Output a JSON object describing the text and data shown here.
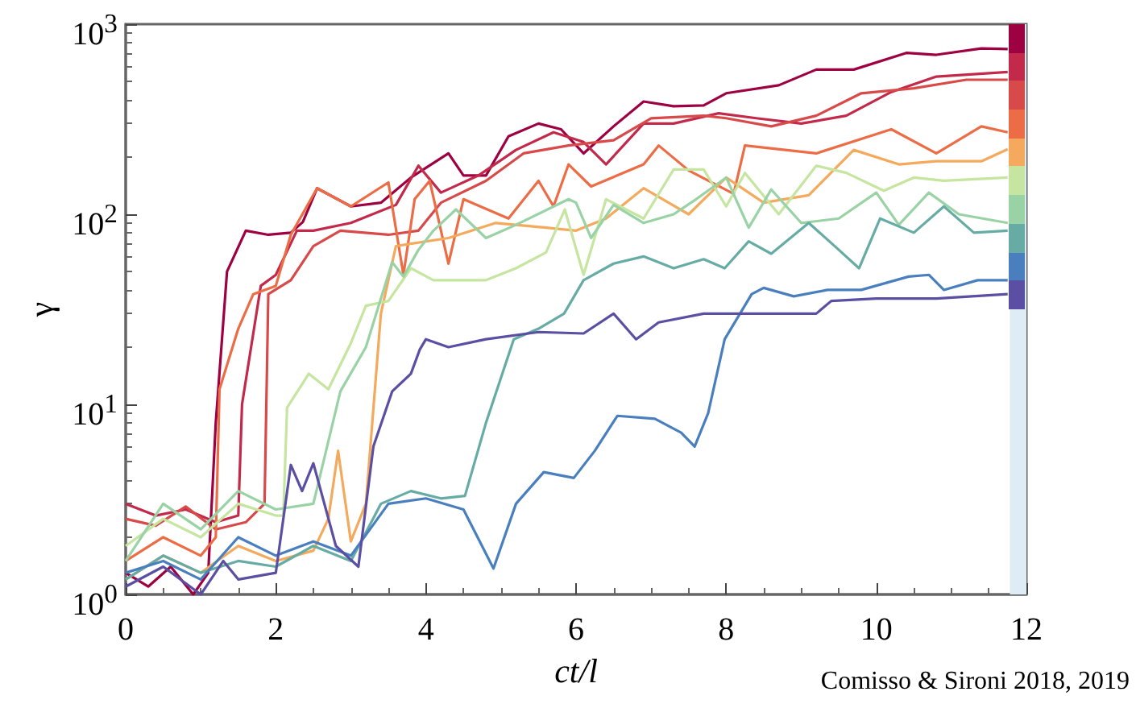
{
  "chart_data": {
    "type": "line",
    "xlabel": "ct/l",
    "ylabel": "γ",
    "log": "y",
    "grid": false,
    "marker": "none",
    "line_style": "solid",
    "xlim": [
      0,
      12
    ],
    "xticks": [
      0,
      2,
      4,
      6,
      8,
      10,
      12
    ],
    "ylim": [
      1,
      1000
    ],
    "yticks": [
      {
        "value": 1,
        "label": "10$^{0}$"
      },
      {
        "value": 10,
        "label": "10$^{1}$"
      },
      {
        "value": 100,
        "label": "10$^{2}$"
      },
      {
        "value": 1000,
        "label": "10$^{3}$"
      }
    ],
    "bands": [
      {
        "axis": "x",
        "from": 11.78,
        "to": 12,
        "color": "#deedf5"
      }
    ],
    "annotations": [
      "Comisso & Sironi 2018, 2019"
    ],
    "series": [
      {
        "color": "#9e0142",
        "x": [
          0,
          0.3,
          0.6,
          0.9,
          1.1,
          1.2,
          1.35,
          1.6,
          1.9,
          2.2,
          2.36,
          2.55,
          3.0,
          3.4,
          3.8,
          4.3,
          4.5,
          4.8,
          5.1,
          5.5,
          5.8,
          6.1,
          6.5,
          6.9,
          7.3,
          7.7,
          8.0,
          8.7,
          9.2,
          9.7,
          10.4,
          10.8,
          11.4,
          11.75
        ],
        "values": [
          1.3,
          1.1,
          1.4,
          1.0,
          1.3,
          8,
          50,
          82,
          78,
          80,
          91,
          137,
          110,
          115,
          156,
          209,
          160,
          160,
          257,
          300,
          280,
          209,
          290,
          392,
          370,
          374,
          433,
          477,
          577,
          577,
          706,
          690,
          745,
          740
        ]
      },
      {
        "color": "#c2294a",
        "x": [
          0,
          0.4,
          0.8,
          1.2,
          1.5,
          1.55,
          1.8,
          2.0,
          2.28,
          2.5,
          3.0,
          3.6,
          3.9,
          4.2,
          4.7,
          5.2,
          5.7,
          6.1,
          6.4,
          6.9,
          7.3,
          7.9,
          8.4,
          9.0,
          9.6,
          10.2,
          10.8,
          11.75
        ],
        "values": [
          3.0,
          2.6,
          2.8,
          2.4,
          2.6,
          10,
          42,
          48,
          82,
          82,
          90,
          112,
          180,
          130,
          160,
          218,
          270,
          240,
          183,
          300,
          300,
          340,
          320,
          300,
          330,
          440,
          530,
          560
        ]
      },
      {
        "color": "#d8494a",
        "x": [
          0,
          0.4,
          0.8,
          1.2,
          1.6,
          1.85,
          1.9,
          2.2,
          2.5,
          2.86,
          3.5,
          3.9,
          4.2,
          4.8,
          5.3,
          5.9,
          6.5,
          7.0,
          7.7,
          8.0,
          8.6,
          9.2,
          9.8,
          10.5,
          11.2,
          11.75
        ],
        "values": [
          2.5,
          2.3,
          2.9,
          2.2,
          2.4,
          3,
          38,
          45,
          68,
          82,
          78,
          82,
          115,
          150,
          209,
          230,
          245,
          320,
          330,
          320,
          290,
          330,
          433,
          460,
          510,
          510
        ]
      },
      {
        "color": "#ec6c45",
        "x": [
          0,
          0.5,
          1.0,
          1.2,
          1.25,
          1.5,
          1.7,
          2.0,
          2.2,
          2.55,
          3.0,
          3.5,
          3.7,
          3.85,
          4.05,
          4.3,
          4.5,
          5.1,
          5.5,
          5.7,
          5.9,
          6.2,
          6.9,
          7.1,
          7.5,
          8.1,
          8.25,
          9.2,
          10.2,
          10.8,
          11.4,
          11.75
        ],
        "values": [
          1.5,
          2.0,
          1.6,
          2.0,
          12,
          25,
          38,
          42,
          78,
          137,
          110,
          147,
          48,
          120,
          150,
          55,
          120,
          95,
          150,
          110,
          183,
          140,
          183,
          230,
          170,
          128,
          230,
          209,
          280,
          209,
          290,
          270
        ]
      },
      {
        "color": "#f5a95c",
        "x": [
          0,
          0.5,
          1.0,
          1.5,
          2.0,
          2.5,
          2.7,
          2.83,
          3.0,
          3.2,
          3.4,
          3.6,
          4.3,
          4.93,
          5.6,
          6.0,
          6.4,
          6.9,
          7.5,
          8.0,
          8.5,
          9.1,
          9.7,
          10.3,
          10.8,
          11.4,
          11.75
        ],
        "values": [
          1.2,
          1.6,
          1.3,
          1.8,
          1.5,
          1.7,
          2.5,
          5.7,
          1.9,
          3,
          30,
          68,
          75,
          90,
          85,
          82,
          95,
          137,
          100,
          156,
          115,
          126,
          218,
          183,
          190,
          190,
          220
        ]
      },
      {
        "color": "#c5e5a0",
        "x": [
          0,
          0.5,
          1.0,
          1.5,
          2.0,
          2.1,
          2.15,
          2.44,
          2.7,
          3.0,
          3.2,
          3.5,
          3.8,
          4.1,
          4.8,
          5.2,
          5.6,
          5.85,
          6.1,
          6.4,
          6.9,
          7.3,
          7.7,
          8.0,
          8.25,
          8.7,
          9.2,
          9.6,
          10.1,
          10.5,
          10.9,
          11.75
        ],
        "values": [
          1.8,
          2.5,
          2.0,
          3.0,
          2.6,
          2.6,
          9.6,
          14.5,
          12,
          21,
          33,
          35,
          52,
          45,
          45,
          52,
          63,
          106,
          48,
          120,
          95,
          172,
          172,
          110,
          165,
          100,
          180,
          165,
          133,
          156,
          150,
          156
        ]
      },
      {
        "color": "#99d2a4",
        "x": [
          0,
          0.5,
          1.0,
          1.5,
          2.0,
          2.5,
          2.86,
          3.2,
          3.55,
          3.7,
          3.9,
          4.1,
          4.4,
          4.8,
          5.2,
          5.9,
          6.0,
          6.2,
          6.5,
          6.9,
          7.3,
          7.6,
          8.0,
          8.3,
          8.6,
          9.0,
          9.5,
          10.0,
          10.3,
          10.7,
          11.1,
          11.75
        ],
        "values": [
          1.5,
          3.0,
          2.2,
          3.5,
          2.8,
          3.0,
          11.7,
          20,
          56,
          47,
          65,
          82,
          106,
          75,
          88,
          120,
          115,
          75,
          112,
          90,
          100,
          120,
          156,
          85,
          135,
          90,
          95,
          130,
          88,
          130,
          100,
          90
        ]
      },
      {
        "color": "#66aca4",
        "x": [
          0,
          0.5,
          1.0,
          1.5,
          2.0,
          2.5,
          3.0,
          3.4,
          3.8,
          4.2,
          4.52,
          4.8,
          5.17,
          5.5,
          5.84,
          6.1,
          6.5,
          6.9,
          7.3,
          7.7,
          7.98,
          8.3,
          8.6,
          9.1,
          9.5,
          9.77,
          10.05,
          10.5,
          10.9,
          11.3,
          11.75
        ],
        "values": [
          1.2,
          1.6,
          1.3,
          1.5,
          1.4,
          1.8,
          1.5,
          3.0,
          3.5,
          3.2,
          3.3,
          8,
          22,
          25,
          30,
          45,
          55,
          60,
          52,
          58,
          52,
          72,
          62,
          90,
          65,
          52,
          95,
          80,
          110,
          80,
          82
        ]
      },
      {
        "color": "#4a7fbf",
        "x": [
          0,
          0.5,
          1.0,
          1.5,
          2.0,
          2.5,
          3.0,
          3.5,
          4.0,
          4.5,
          4.9,
          5.2,
          5.57,
          5.97,
          6.25,
          6.55,
          7.05,
          7.4,
          7.58,
          7.76,
          7.98,
          8.34,
          8.5,
          8.9,
          9.35,
          9.8,
          10.43,
          10.7,
          10.9,
          11.35,
          11.75
        ],
        "values": [
          1.3,
          1.5,
          1.2,
          2.0,
          1.6,
          1.9,
          1.6,
          3.0,
          3.2,
          2.8,
          1.37,
          3.0,
          4.4,
          4.1,
          5.7,
          8.7,
          8.4,
          7.1,
          6.0,
          9,
          22,
          38,
          41,
          37,
          40,
          40,
          47,
          48,
          40,
          45,
          45
        ]
      },
      {
        "color": "#5a4fa3",
        "x": [
          0,
          0.5,
          1.0,
          1.3,
          1.5,
          2.0,
          2.2,
          2.35,
          2.5,
          2.8,
          3.1,
          3.3,
          3.55,
          3.8,
          3.92,
          4.0,
          4.3,
          4.8,
          5.5,
          6.1,
          6.5,
          6.8,
          7.1,
          7.7,
          8.5,
          9.2,
          9.4,
          10.0,
          10.8,
          11.75
        ],
        "values": [
          1.1,
          1.4,
          1.0,
          1.5,
          1.2,
          1.3,
          4.8,
          3.5,
          4.9,
          1.8,
          1.4,
          6,
          11.7,
          14.5,
          19.5,
          22,
          20,
          22,
          24,
          23.6,
          30,
          22,
          27,
          30,
          30,
          30,
          35,
          36,
          36,
          38
        ]
      }
    ]
  }
}
